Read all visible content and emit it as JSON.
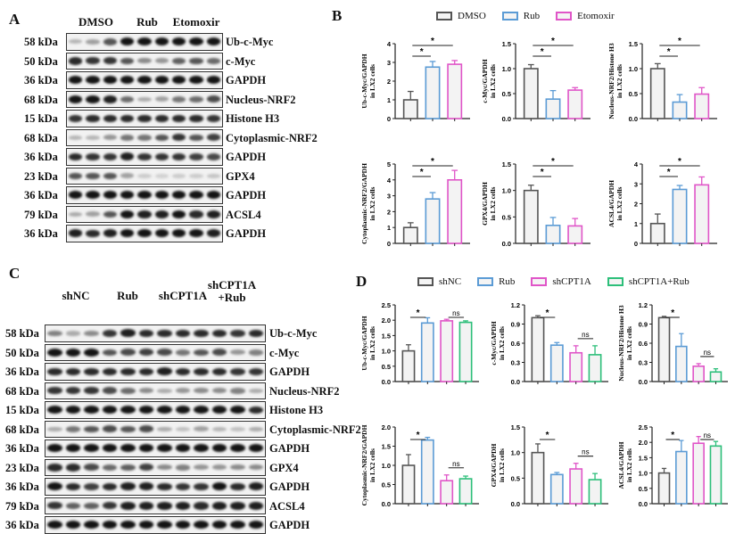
{
  "panels": {
    "A": {
      "letter": "A",
      "groups": [
        "DMSO",
        "Rub",
        "Etomoxir"
      ],
      "lanes": 9,
      "rows": [
        {
          "kda": "58 kDa",
          "protein": "Ub-c-Myc",
          "intensity": [
            0.25,
            0.35,
            0.7,
            1,
            1,
            1,
            1,
            1,
            1
          ]
        },
        {
          "kda": "50 kDa",
          "protein": "c-Myc",
          "intensity": [
            0.9,
            0.85,
            0.85,
            0.7,
            0.45,
            0.4,
            0.65,
            0.7,
            0.6
          ]
        },
        {
          "kda": "36 kDa",
          "protein": "GAPDH",
          "intensity": [
            1,
            1,
            1,
            1,
            1,
            1,
            1,
            1,
            1
          ]
        },
        {
          "kda": "68 kDa",
          "protein": "Nucleus-NRF2",
          "intensity": [
            1,
            1,
            0.95,
            0.6,
            0.3,
            0.35,
            0.55,
            0.6,
            0.75
          ]
        },
        {
          "kda": "15 kDa",
          "protein": "Histone H3",
          "intensity": [
            0.85,
            0.9,
            0.9,
            0.9,
            0.9,
            0.9,
            0.9,
            0.9,
            0.85
          ]
        },
        {
          "kda": "68 kDa",
          "protein": "Cytoplasmic-NRF2",
          "intensity": [
            0.25,
            0.25,
            0.4,
            0.55,
            0.55,
            0.7,
            0.85,
            0.7,
            0.8
          ]
        },
        {
          "kda": "36 kDa",
          "protein": "GAPDH",
          "intensity": [
            0.9,
            0.85,
            0.85,
            0.95,
            0.85,
            0.85,
            0.85,
            0.8,
            0.75
          ]
        },
        {
          "kda": "23 kDa",
          "protein": "GPX4",
          "intensity": [
            0.7,
            0.7,
            0.7,
            0.35,
            0.15,
            0.12,
            0.15,
            0.15,
            0.18
          ]
        },
        {
          "kda": "36 kDa",
          "protein": "GAPDH",
          "intensity": [
            1,
            1,
            1,
            1,
            1,
            1,
            1,
            1,
            1
          ]
        },
        {
          "kda": "79 kDa",
          "protein": "ACSL4",
          "intensity": [
            0.3,
            0.35,
            0.7,
            1,
            0.95,
            0.95,
            1,
            0.9,
            0.95
          ]
        },
        {
          "kda": "36 kDa",
          "protein": "GAPDH",
          "intensity": [
            0.95,
            0.9,
            0.95,
            1,
            1,
            1,
            1,
            1,
            0.95
          ]
        }
      ]
    },
    "B": {
      "letter": "B",
      "legend": [
        {
          "label": "DMSO",
          "color": "#555555"
        },
        {
          "label": "Rub",
          "color": "#5b9bd5"
        },
        {
          "label": "Etomoxir",
          "color": "#e055c8"
        }
      ]
    },
    "C": {
      "letter": "C",
      "groups": [
        "shNC",
        "Rub",
        "shCPT1A",
        "shCPT1A\n+Rub"
      ],
      "lanes": 12,
      "rows": [
        {
          "kda": "58 kDa",
          "protein": "Ub-c-Myc",
          "intensity": [
            0.5,
            0.3,
            0.45,
            0.85,
            0.95,
            0.9,
            0.9,
            0.9,
            0.9,
            0.9,
            0.85,
            0.9
          ]
        },
        {
          "kda": "50 kDa",
          "protein": "c-Myc",
          "intensity": [
            1,
            1,
            1,
            0.7,
            0.75,
            0.8,
            0.75,
            0.55,
            0.7,
            0.75,
            0.4,
            0.5
          ]
        },
        {
          "kda": "36 kDa",
          "protein": "GAPDH",
          "intensity": [
            0.9,
            0.9,
            0.9,
            0.9,
            0.9,
            0.9,
            0.95,
            0.9,
            0.9,
            0.9,
            0.85,
            0.85
          ]
        },
        {
          "kda": "68 kDa",
          "protein": "Nucleus-NRF2",
          "intensity": [
            0.85,
            0.85,
            0.85,
            0.75,
            0.6,
            0.45,
            0.3,
            0.4,
            0.45,
            0.45,
            0.5,
            0.3
          ]
        },
        {
          "kda": "15 kDa",
          "protein": "Histone H3",
          "intensity": [
            1,
            1,
            1,
            1,
            1,
            1,
            1,
            1,
            1,
            1,
            1,
            0.9
          ]
        },
        {
          "kda": "68 kDa",
          "protein": "Cytoplasmic-NRF2",
          "intensity": [
            0.3,
            0.55,
            0.7,
            0.75,
            0.7,
            0.75,
            0.3,
            0.2,
            0.35,
            0.25,
            0.2,
            0.3
          ]
        },
        {
          "kda": "36 kDa",
          "protein": "GAPDH",
          "intensity": [
            1,
            1,
            1,
            1,
            1,
            1,
            1,
            1,
            1,
            1,
            1,
            1
          ]
        },
        {
          "kda": "23 kDa",
          "protein": "GPX4",
          "intensity": [
            0.9,
            0.9,
            0.75,
            0.6,
            0.65,
            0.8,
            0.45,
            0.5,
            0.4,
            0.4,
            0.45,
            0.45
          ]
        },
        {
          "kda": "36 kDa",
          "protein": "GAPDH",
          "intensity": [
            1,
            0.9,
            0.8,
            0.9,
            0.95,
            0.95,
            0.9,
            0.85,
            0.85,
            1,
            0.9,
            0.95
          ]
        },
        {
          "kda": "79 kDa",
          "protein": "ACSL4",
          "intensity": [
            0.85,
            0.65,
            0.65,
            0.85,
            0.95,
            0.95,
            0.95,
            0.95,
            0.9,
            0.95,
            0.95,
            0.95
          ]
        },
        {
          "kda": "36 kDa",
          "protein": "GAPDH",
          "intensity": [
            1,
            1,
            1,
            1,
            1,
            1,
            1,
            1,
            1,
            1,
            1,
            1
          ]
        }
      ]
    },
    "D": {
      "letter": "D",
      "legend": [
        {
          "label": "shNC",
          "color": "#555555"
        },
        {
          "label": "Rub",
          "color": "#5b9bd5"
        },
        {
          "label": "shCPT1A",
          "color": "#e055c8"
        },
        {
          "label": "shCPT1A+Rub",
          "color": "#2dbf7a"
        }
      ]
    }
  },
  "chart_data": [
    {
      "panel": "B",
      "type": "bar",
      "ylabel": "Ub-c-Myc/GAPDH\nin LX2 cells",
      "categories": [
        "DMSO",
        "Rub",
        "Etomoxir"
      ],
      "values": [
        1.0,
        2.75,
        2.9
      ],
      "errors": [
        0.45,
        0.3,
        0.2
      ],
      "ylim": [
        0,
        4
      ],
      "yticks": [
        "0",
        "1",
        "2",
        "3",
        "4"
      ],
      "sig": [
        {
          "from": 0,
          "to": 1,
          "label": "*",
          "level": 0
        },
        {
          "from": 0,
          "to": 2,
          "label": "*",
          "level": 1
        }
      ]
    },
    {
      "panel": "B",
      "type": "bar",
      "ylabel": "c-Myc/GAPDH\nin LX2 cells",
      "categories": [
        "DMSO",
        "Rub",
        "Etomoxir"
      ],
      "values": [
        1.0,
        0.39,
        0.57
      ],
      "errors": [
        0.08,
        0.17,
        0.05
      ],
      "ylim": [
        0,
        1.5
      ],
      "yticks": [
        "0.0",
        "0.5",
        "1.0",
        "1.5"
      ],
      "sig": [
        {
          "from": 0,
          "to": 1,
          "label": "*",
          "level": 0
        },
        {
          "from": 0,
          "to": 2,
          "label": "*",
          "level": 1
        }
      ]
    },
    {
      "panel": "B",
      "type": "bar",
      "ylabel": "Nucleus-NRF2/Histone H3\nin LX2 cells",
      "categories": [
        "DMSO",
        "Rub",
        "Etomoxir"
      ],
      "values": [
        1.0,
        0.33,
        0.49
      ],
      "errors": [
        0.1,
        0.15,
        0.13
      ],
      "ylim": [
        0,
        1.5
      ],
      "yticks": [
        "0.0",
        "0.5",
        "1.0",
        "1.5"
      ],
      "sig": [
        {
          "from": 0,
          "to": 1,
          "label": "*",
          "level": 0
        },
        {
          "from": 0,
          "to": 2,
          "label": "*",
          "level": 1
        }
      ]
    },
    {
      "panel": "B",
      "type": "bar",
      "ylabel": "Cytoplasmic-NRF2/GAPDH\nin LX2 cells",
      "categories": [
        "DMSO",
        "Rub",
        "Etomoxir"
      ],
      "values": [
        1.0,
        2.8,
        4.0
      ],
      "errors": [
        0.3,
        0.4,
        0.6
      ],
      "ylim": [
        0,
        5
      ],
      "yticks": [
        "0",
        "1",
        "2",
        "3",
        "4",
        "5"
      ],
      "sig": [
        {
          "from": 0,
          "to": 1,
          "label": "*",
          "level": 0
        },
        {
          "from": 0,
          "to": 2,
          "label": "*",
          "level": 1
        }
      ]
    },
    {
      "panel": "B",
      "type": "bar",
      "ylabel": "GPX4/GAPDH\nin LX2 cells",
      "categories": [
        "DMSO",
        "Rub",
        "Etomoxir"
      ],
      "values": [
        1.0,
        0.34,
        0.33
      ],
      "errors": [
        0.1,
        0.15,
        0.14
      ],
      "ylim": [
        0,
        1.5
      ],
      "yticks": [
        "0.0",
        "0.5",
        "1.0",
        "1.5"
      ],
      "sig": [
        {
          "from": 0,
          "to": 1,
          "label": "*",
          "level": 0
        },
        {
          "from": 0,
          "to": 2,
          "label": "*",
          "level": 1
        }
      ]
    },
    {
      "panel": "B",
      "type": "bar",
      "ylabel": "ACSL4/GAPDH\nin LX2 cells",
      "categories": [
        "DMSO",
        "Rub",
        "Etomoxir"
      ],
      "values": [
        1.0,
        2.72,
        2.95
      ],
      "errors": [
        0.48,
        0.2,
        0.4
      ],
      "ylim": [
        0,
        4
      ],
      "yticks": [
        "0",
        "1",
        "2",
        "3",
        "4"
      ],
      "sig": [
        {
          "from": 0,
          "to": 1,
          "label": "*",
          "level": 0
        },
        {
          "from": 0,
          "to": 2,
          "label": "*",
          "level": 1
        }
      ]
    },
    {
      "panel": "D",
      "type": "bar",
      "ylabel": "Ub-c-Myc/GAPDH\nin LX2 cells",
      "categories": [
        "shNC",
        "Rub",
        "shCPT1A",
        "shCPT1A+Rub"
      ],
      "values": [
        1.0,
        1.91,
        1.98,
        1.93
      ],
      "errors": [
        0.2,
        0.17,
        0.05,
        0.05
      ],
      "ylim": [
        0,
        2.5
      ],
      "yticks": [
        "0.0",
        "0.5",
        "1.0",
        "1.5",
        "2.0",
        "2.5"
      ],
      "sig": [
        {
          "from": 0,
          "to": 1,
          "label": "*",
          "level": 0
        },
        {
          "from": 2,
          "to": 3,
          "label": "ns",
          "level": 0
        }
      ]
    },
    {
      "panel": "D",
      "type": "bar",
      "ylabel": "c-Myc/GAPDH\nin LX2 cells",
      "categories": [
        "shNC",
        "Rub",
        "shCPT1A",
        "shCPT1A+Rub"
      ],
      "values": [
        1.0,
        0.57,
        0.45,
        0.42
      ],
      "errors": [
        0.03,
        0.04,
        0.11,
        0.14
      ],
      "ylim": [
        0,
        1.2
      ],
      "yticks": [
        "0.0",
        "0.3",
        "0.6",
        "0.9",
        "1.2"
      ],
      "sig": [
        {
          "from": 0,
          "to": 1,
          "label": "*",
          "level": 0
        },
        {
          "from": 2,
          "to": 3,
          "label": "ns",
          "level": 0
        }
      ]
    },
    {
      "panel": "D",
      "type": "bar",
      "ylabel": "Nucleus-NRF2/Histone H3\nin LX2 cells",
      "categories": [
        "shNC",
        "Rub",
        "shCPT1A",
        "shCPT1A+Rub"
      ],
      "values": [
        1.0,
        0.55,
        0.24,
        0.15
      ],
      "errors": [
        0.02,
        0.2,
        0.04,
        0.05
      ],
      "ylim": [
        0,
        1.2
      ],
      "yticks": [
        "0.0",
        "0.3",
        "0.6",
        "0.9",
        "1.2"
      ],
      "sig": [
        {
          "from": 0,
          "to": 1,
          "label": "*",
          "level": 0
        },
        {
          "from": 2,
          "to": 3,
          "label": "ns",
          "level": 0
        }
      ]
    },
    {
      "panel": "D",
      "type": "bar",
      "ylabel": "Cytoplasmic-NRF2/GAPDH\nin LX2 cells",
      "categories": [
        "shNC",
        "Rub",
        "shCPT1A",
        "shCPT1A+Rub"
      ],
      "values": [
        1.0,
        1.66,
        0.6,
        0.65
      ],
      "errors": [
        0.28,
        0.07,
        0.15,
        0.07
      ],
      "ylim": [
        0,
        2.0
      ],
      "yticks": [
        "0.0",
        "0.5",
        "1.0",
        "1.5",
        "2.0"
      ],
      "sig": [
        {
          "from": 0,
          "to": 1,
          "label": "*",
          "level": 0
        },
        {
          "from": 2,
          "to": 3,
          "label": "ns",
          "level": 0
        }
      ]
    },
    {
      "panel": "D",
      "type": "bar",
      "ylabel": "GPX4/GAPDH\nin LX2 cells",
      "categories": [
        "shNC",
        "Rub",
        "shCPT1A",
        "shCPT1A+Rub"
      ],
      "values": [
        1.0,
        0.57,
        0.68,
        0.47
      ],
      "errors": [
        0.17,
        0.04,
        0.11,
        0.12
      ],
      "ylim": [
        0,
        1.5
      ],
      "yticks": [
        "0.0",
        "0.5",
        "1.0",
        "1.5"
      ],
      "sig": [
        {
          "from": 0,
          "to": 1,
          "label": "*",
          "level": 0
        },
        {
          "from": 2,
          "to": 3,
          "label": "ns",
          "level": 0
        }
      ]
    },
    {
      "panel": "D",
      "type": "bar",
      "ylabel": "ACSL4/GAPDH\nin LX2 cells",
      "categories": [
        "shNC",
        "Rub",
        "shCPT1A",
        "shCPT1A+Rub"
      ],
      "values": [
        1.0,
        1.7,
        1.97,
        1.88
      ],
      "errors": [
        0.15,
        0.36,
        0.22,
        0.15
      ],
      "ylim": [
        0,
        2.5
      ],
      "yticks": [
        "0.0",
        "0.5",
        "1.0",
        "1.5",
        "2.0",
        "2.5"
      ],
      "sig": [
        {
          "from": 0,
          "to": 1,
          "label": "*",
          "level": 0
        },
        {
          "from": 2,
          "to": 3,
          "label": "ns",
          "level": 0
        }
      ]
    }
  ]
}
